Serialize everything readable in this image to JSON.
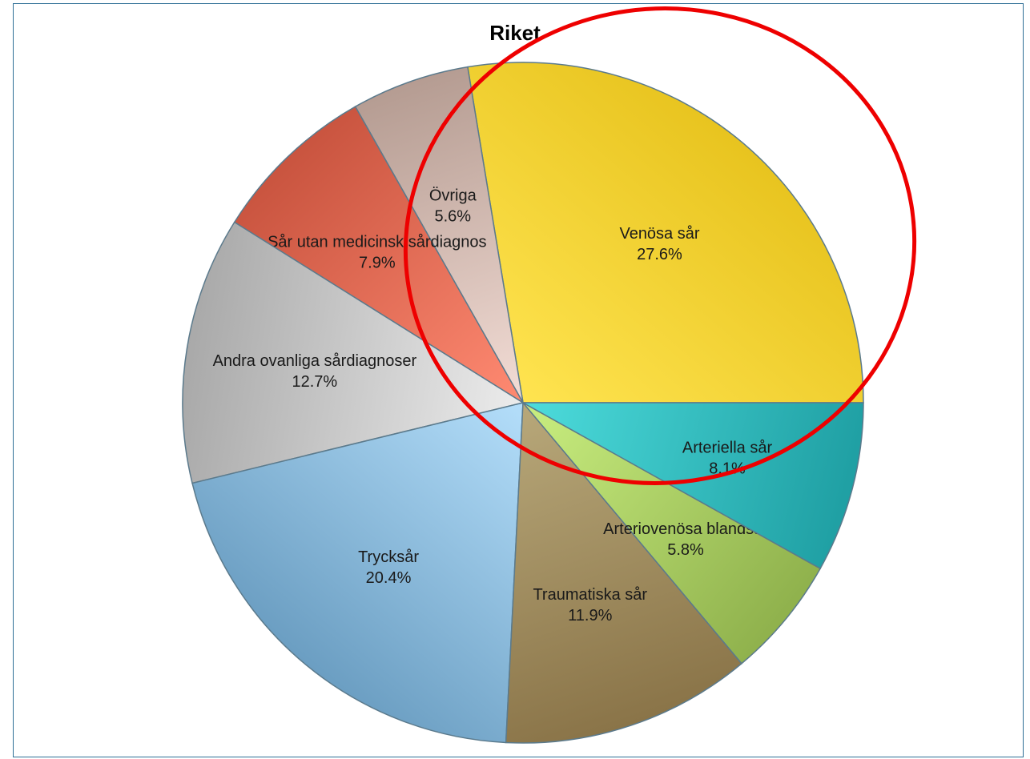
{
  "chart_data": {
    "type": "pie",
    "title": "Riket",
    "slices": [
      {
        "label": "Venösa sår",
        "value": 27.6,
        "value_label": "27.6%",
        "color": "#e8c41f",
        "light": "#ffe450"
      },
      {
        "label": "Övriga",
        "value": 5.6,
        "value_label": "5.6%",
        "color": "#b59c92",
        "light": "#f3ddd6"
      },
      {
        "label": "Sår utan medicinsk sårdiagnos",
        "value": 7.9,
        "value_label": "7.9%",
        "color": "#c9543f",
        "light": "#ff8a72"
      },
      {
        "label": "Andra ovanliga sårdiagnoser",
        "value": 12.7,
        "value_label": "12.7%",
        "color": "#a9a9a9",
        "light": "#ececec"
      },
      {
        "label": "Trycksår",
        "value": 20.4,
        "value_label": "20.4%",
        "color": "#6b9ec2",
        "light": "#b4defa"
      },
      {
        "label": "Traumatiska sår",
        "value": 11.9,
        "value_label": "11.9%",
        "color": "#8a7448",
        "light": "#b8a87a"
      },
      {
        "label": "Arteriovenösa blandsår",
        "value": 5.8,
        "value_label": "5.8%",
        "color": "#8fb14c",
        "light": "#c9ee80"
      },
      {
        "label": "Arteriella sår",
        "value": 8.1,
        "value_label": "8.1%",
        "color": "#1f9fa3",
        "light": "#4ddcdc"
      }
    ],
    "start": "3 o'clock, counter-clockwise",
    "annotation": {
      "shape": "ellipse",
      "color": "#ee0000"
    }
  }
}
